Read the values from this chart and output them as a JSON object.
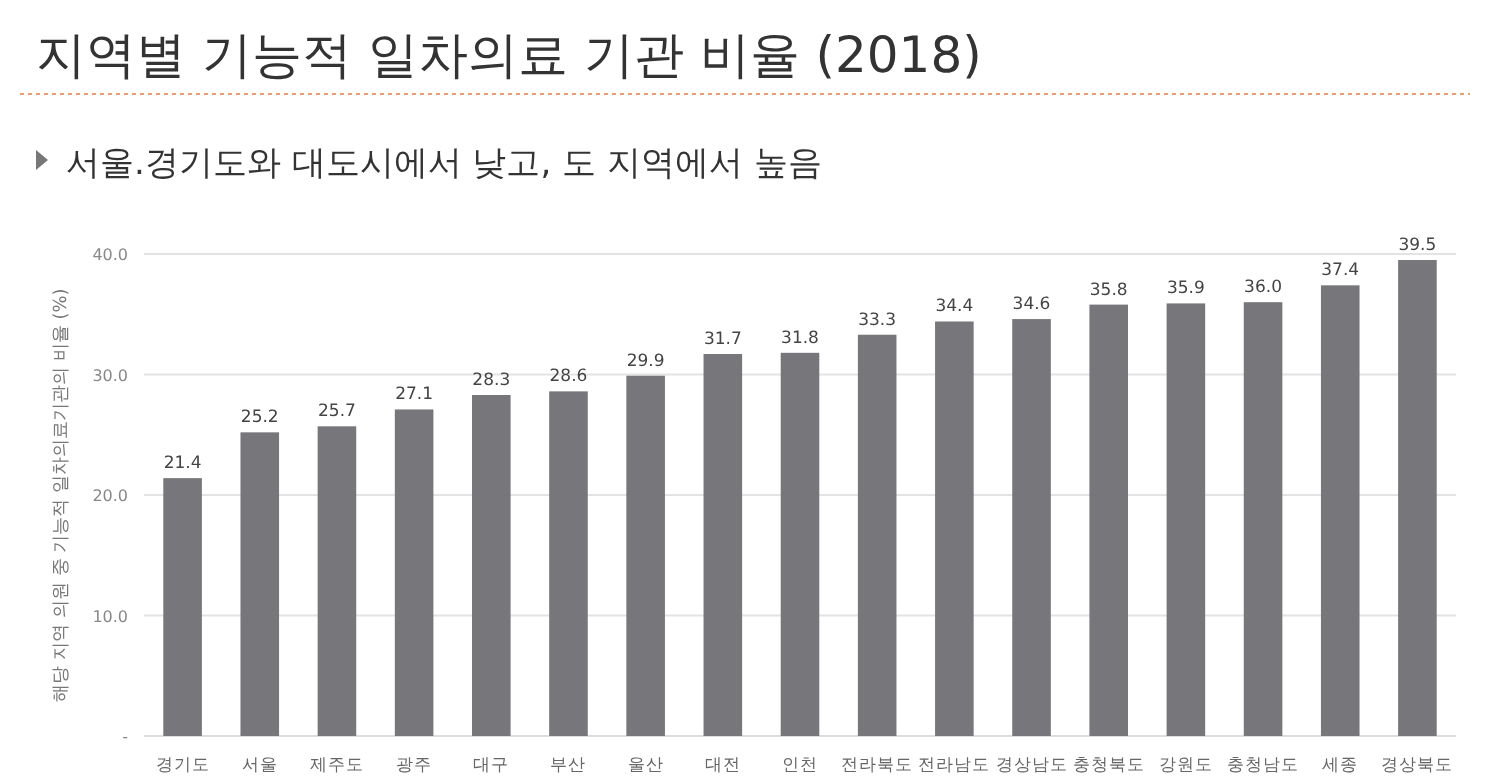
{
  "chart_data": {
    "type": "bar",
    "title": "지역별 기능적 일차의료 기관 비율 (2018)",
    "subtitle": "서울.경기도와 대도시에서 낮고, 도 지역에서 높음",
    "ylabel": "해당 지역 의원 중 기능적 일차의료기관의 비율 (%)",
    "categories": [
      "경기도",
      "서울",
      "제주도",
      "광주",
      "대구",
      "부산",
      "울산",
      "대전",
      "인천",
      "전라북도",
      "전라남도",
      "경상남도",
      "충청북도",
      "강원도",
      "충청남도",
      "세종",
      "경상북도"
    ],
    "values": [
      21.4,
      25.2,
      25.7,
      27.1,
      28.3,
      28.6,
      29.9,
      31.7,
      31.8,
      33.3,
      34.4,
      34.6,
      35.8,
      35.9,
      36.0,
      37.4,
      39.5
    ],
    "value_labels": [
      "21.4",
      "25.2",
      "25.7",
      "27.1",
      "28.3",
      "28.6",
      "29.9",
      "31.7",
      "31.8",
      "33.3",
      "34.4",
      "34.6",
      "35.8",
      "35.9",
      "36.0",
      "37.4",
      "39.5"
    ],
    "color": "#77777b",
    "ylim": [
      0,
      40
    ],
    "yticks": [
      {
        "value": 0,
        "label": "-"
      },
      {
        "value": 10,
        "label": "10.0"
      },
      {
        "value": 20,
        "label": "20.0"
      },
      {
        "value": 30,
        "label": "30.0"
      },
      {
        "value": 40,
        "label": "40.0"
      }
    ],
    "grid": "y"
  }
}
